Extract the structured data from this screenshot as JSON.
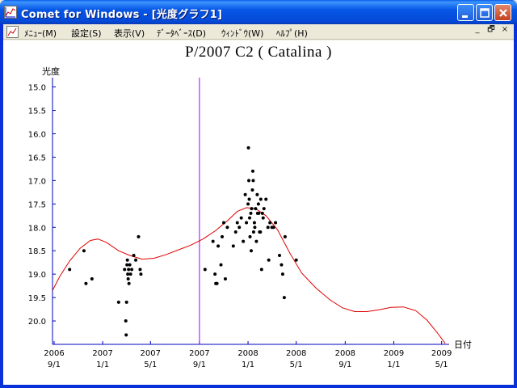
{
  "window": {
    "title": "Comet for Windows - [光度グラフ1]",
    "minimize_icon": "minimize-icon",
    "maximize_icon": "maximize-icon",
    "close_icon": "close-icon"
  },
  "menu": {
    "items": [
      "ﾒﾆｭｰ(M)",
      "設定(S)",
      "表示(V)",
      "ﾃﾞｰﾀﾍﾞｰｽ(D)",
      "ｳｨﾝﾄﾞｳ(W)",
      "ﾍﾙﾌﾟ(H)"
    ],
    "mdi_buttons": [
      "_",
      "🗗",
      "×"
    ]
  },
  "colors": {
    "points": "#000000",
    "curve": "#e00000",
    "axis": "#0000c0",
    "marker": "#a000ff"
  },
  "chart_data": {
    "type": "scatter",
    "title": "P/2007 C2 ( Catalina )",
    "ylabel": "光度",
    "xlabel": "日付",
    "ylim": [
      20.5,
      14.8
    ],
    "y_inverted": true,
    "yticks": [
      15.0,
      15.5,
      16.0,
      16.5,
      17.0,
      17.5,
      18.0,
      18.5,
      19.0,
      19.5,
      20.0
    ],
    "xlim": [
      "2006-08-28",
      "2009-05-20"
    ],
    "xticks": [
      {
        "date": "2006-09-01",
        "year": "2006",
        "md": "9/1"
      },
      {
        "date": "2007-01-01",
        "year": "2007",
        "md": "1/1"
      },
      {
        "date": "2007-05-01",
        "year": "2007",
        "md": "5/1"
      },
      {
        "date": "2007-09-01",
        "year": "2007",
        "md": "9/1"
      },
      {
        "date": "2008-01-01",
        "year": "2008",
        "md": "1/1"
      },
      {
        "date": "2008-05-01",
        "year": "2008",
        "md": "5/1"
      },
      {
        "date": "2008-09-01",
        "year": "2008",
        "md": "9/1"
      },
      {
        "date": "2009-01-01",
        "year": "2009",
        "md": "1/1"
      },
      {
        "date": "2009-05-01",
        "year": "2009",
        "md": "5/1"
      }
    ],
    "marker_date": "2007-09-01",
    "observations": [
      [
        "2006-10-10",
        18.9
      ],
      [
        "2006-11-15",
        18.5
      ],
      [
        "2006-11-20",
        19.2
      ],
      [
        "2006-12-05",
        19.1
      ],
      [
        "2007-02-10",
        19.6
      ],
      [
        "2007-02-25",
        18.9
      ],
      [
        "2007-02-28",
        20.0
      ],
      [
        "2007-03-01",
        20.3
      ],
      [
        "2007-03-02",
        19.6
      ],
      [
        "2007-03-03",
        18.8
      ],
      [
        "2007-03-04",
        18.7
      ],
      [
        "2007-03-05",
        19.0
      ],
      [
        "2007-03-06",
        19.1
      ],
      [
        "2007-03-07",
        18.9
      ],
      [
        "2007-03-08",
        19.2
      ],
      [
        "2007-03-10",
        18.8
      ],
      [
        "2007-03-12",
        19.0
      ],
      [
        "2007-03-15",
        18.9
      ],
      [
        "2007-03-20",
        18.6
      ],
      [
        "2007-03-25",
        18.7
      ],
      [
        "2007-04-01",
        18.2
      ],
      [
        "2007-04-05",
        18.9
      ],
      [
        "2007-04-07",
        19.0
      ],
      [
        "2007-09-15",
        18.9
      ],
      [
        "2007-10-05",
        18.3
      ],
      [
        "2007-10-10",
        19.0
      ],
      [
        "2007-10-12",
        19.2
      ],
      [
        "2007-10-15",
        19.2
      ],
      [
        "2007-10-18",
        18.4
      ],
      [
        "2007-10-25",
        18.8
      ],
      [
        "2007-10-28",
        18.2
      ],
      [
        "2007-11-01",
        17.9
      ],
      [
        "2007-11-05",
        19.1
      ],
      [
        "2007-11-10",
        18.0
      ],
      [
        "2007-11-25",
        18.4
      ],
      [
        "2007-12-01",
        18.1
      ],
      [
        "2007-12-05",
        17.9
      ],
      [
        "2007-12-10",
        18.0
      ],
      [
        "2007-12-15",
        17.8
      ],
      [
        "2007-12-20",
        18.3
      ],
      [
        "2007-12-25",
        17.3
      ],
      [
        "2007-12-28",
        17.9
      ],
      [
        "2008-01-01",
        17.5
      ],
      [
        "2008-01-02",
        16.3
      ],
      [
        "2008-01-03",
        17.0
      ],
      [
        "2008-01-04",
        17.4
      ],
      [
        "2008-01-05",
        17.8
      ],
      [
        "2008-01-06",
        18.2
      ],
      [
        "2008-01-08",
        17.7
      ],
      [
        "2008-01-09",
        18.5
      ],
      [
        "2008-01-10",
        17.6
      ],
      [
        "2008-01-12",
        17.2
      ],
      [
        "2008-01-13",
        16.8
      ],
      [
        "2008-01-14",
        17.0
      ],
      [
        "2008-01-15",
        18.1
      ],
      [
        "2008-01-17",
        17.9
      ],
      [
        "2008-01-18",
        18.0
      ],
      [
        "2008-01-20",
        17.6
      ],
      [
        "2008-01-22",
        18.3
      ],
      [
        "2008-01-24",
        17.3
      ],
      [
        "2008-01-25",
        17.7
      ],
      [
        "2008-01-27",
        17.5
      ],
      [
        "2008-01-28",
        17.7
      ],
      [
        "2008-01-30",
        18.1
      ],
      [
        "2008-02-01",
        18.1
      ],
      [
        "2008-02-02",
        17.4
      ],
      [
        "2008-02-04",
        18.9
      ],
      [
        "2008-02-06",
        17.7
      ],
      [
        "2008-02-08",
        17.8
      ],
      [
        "2008-02-10",
        17.6
      ],
      [
        "2008-02-15",
        17.4
      ],
      [
        "2008-02-20",
        18.0
      ],
      [
        "2008-02-22",
        18.7
      ],
      [
        "2008-02-25",
        17.9
      ],
      [
        "2008-03-01",
        18.0
      ],
      [
        "2008-03-05",
        18.0
      ],
      [
        "2008-03-10",
        17.9
      ],
      [
        "2008-03-20",
        18.6
      ],
      [
        "2008-03-25",
        18.8
      ],
      [
        "2008-03-28",
        19.0
      ],
      [
        "2008-04-01",
        19.5
      ],
      [
        "2008-04-03",
        18.2
      ],
      [
        "2008-05-01",
        18.7
      ]
    ],
    "curve": [
      [
        "2006-08-28",
        19.35
      ],
      [
        "2006-09-15",
        19.05
      ],
      [
        "2006-10-10",
        18.72
      ],
      [
        "2006-11-05",
        18.45
      ],
      [
        "2006-12-01",
        18.28
      ],
      [
        "2006-12-20",
        18.25
      ],
      [
        "2007-01-10",
        18.32
      ],
      [
        "2007-02-10",
        18.5
      ],
      [
        "2007-03-10",
        18.6
      ],
      [
        "2007-04-10",
        18.68
      ],
      [
        "2007-05-10",
        18.66
      ],
      [
        "2007-06-10",
        18.58
      ],
      [
        "2007-07-10",
        18.48
      ],
      [
        "2007-08-10",
        18.38
      ],
      [
        "2007-09-10",
        18.25
      ],
      [
        "2007-10-10",
        18.08
      ],
      [
        "2007-11-10",
        17.86
      ],
      [
        "2007-12-05",
        17.66
      ],
      [
        "2007-12-28",
        17.58
      ],
      [
        "2008-01-20",
        17.6
      ],
      [
        "2008-02-15",
        17.75
      ],
      [
        "2008-03-15",
        18.05
      ],
      [
        "2008-04-15",
        18.55
      ],
      [
        "2008-05-15",
        18.98
      ],
      [
        "2008-06-20",
        19.3
      ],
      [
        "2008-07-25",
        19.55
      ],
      [
        "2008-08-25",
        19.72
      ],
      [
        "2008-09-25",
        19.8
      ],
      [
        "2008-10-25",
        19.8
      ],
      [
        "2008-11-25",
        19.76
      ],
      [
        "2008-12-25",
        19.71
      ],
      [
        "2009-01-25",
        19.7
      ],
      [
        "2009-02-25",
        19.78
      ],
      [
        "2009-03-25",
        19.98
      ],
      [
        "2009-04-20",
        20.25
      ],
      [
        "2009-05-10",
        20.48
      ]
    ]
  }
}
